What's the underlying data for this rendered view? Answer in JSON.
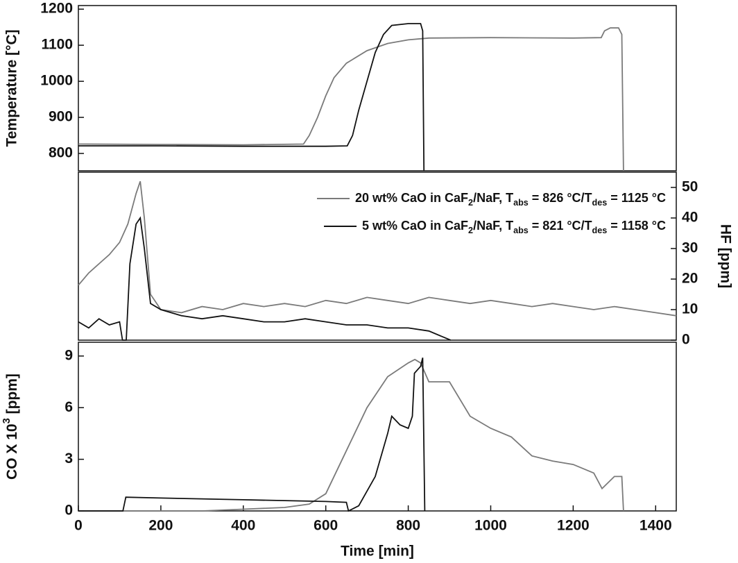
{
  "chart_data": [
    {
      "type": "line",
      "ylabel": "Temperature [°C]",
      "yaxis": "left",
      "xlim": [
        0,
        1450
      ],
      "ylim": [
        752,
        1210
      ],
      "yticks": [
        800,
        900,
        1000,
        1100,
        1200
      ],
      "series": [
        {
          "name": null,
          "color": "#7a7a7a",
          "x": [
            0,
            200,
            400,
            546,
            560,
            580,
            600,
            620,
            650,
            700,
            750,
            800,
            850,
            1000,
            1200,
            1268,
            1276,
            1290,
            1310,
            1318,
            1322
          ],
          "values": [
            826,
            825,
            824,
            826,
            850,
            900,
            960,
            1010,
            1050,
            1085,
            1105,
            1115,
            1120,
            1121,
            1120,
            1121,
            1140,
            1148,
            1148,
            1130,
            752
          ]
        },
        {
          "name": null,
          "color": "#111111",
          "x": [
            0,
            200,
            400,
            600,
            652,
            665,
            680,
            700,
            720,
            740,
            760,
            800,
            830,
            835,
            838
          ],
          "values": [
            821,
            821,
            820,
            820,
            821,
            850,
            920,
            1000,
            1080,
            1130,
            1155,
            1160,
            1160,
            1140,
            752
          ]
        }
      ]
    },
    {
      "type": "line",
      "ylabel": "HF [ppm]",
      "yaxis": "right",
      "legend": "upper right",
      "xlim": [
        0,
        1450
      ],
      "ylim": [
        0,
        55
      ],
      "yticks": [
        0,
        10,
        20,
        30,
        40,
        50
      ],
      "series": [
        {
          "name": [
            "20 wt% CaO in CaF",
            "2",
            "/NaF, T",
            "abs",
            " = 826 °C/T",
            "des",
            " = 1125 °C"
          ],
          "color": "#7a7a7a",
          "x": [
            0,
            25,
            50,
            75,
            100,
            120,
            140,
            150,
            160,
            175,
            200,
            250,
            300,
            350,
            400,
            450,
            500,
            550,
            600,
            650,
            700,
            750,
            800,
            850,
            900,
            950,
            1000,
            1050,
            1100,
            1150,
            1200,
            1250,
            1300,
            1350,
            1400,
            1450
          ],
          "values": [
            18,
            22,
            25,
            28,
            32,
            38,
            48,
            52,
            40,
            15,
            10,
            9,
            11,
            10,
            12,
            11,
            12,
            11,
            13,
            12,
            14,
            13,
            12,
            14,
            13,
            12,
            13,
            12,
            11,
            12,
            11,
            10,
            11,
            10,
            9,
            8
          ]
        },
        {
          "name": [
            "5 wt% CaO in CaF",
            "2",
            "/NaF, T",
            "abs",
            " = 821 °C/T",
            "des",
            " = 1158 °C"
          ],
          "color": "#111111",
          "x": [
            0,
            25,
            50,
            75,
            100,
            107,
            116,
            125,
            140,
            150,
            160,
            175,
            200,
            250,
            300,
            350,
            400,
            450,
            500,
            550,
            600,
            650,
            700,
            750,
            800,
            850,
            903
          ],
          "values": [
            6,
            4,
            7,
            5,
            6,
            0,
            0,
            25,
            38,
            40,
            30,
            12,
            10,
            8,
            7,
            8,
            7,
            6,
            6,
            7,
            6,
            5,
            5,
            4,
            4,
            3,
            0
          ]
        }
      ]
    },
    {
      "type": "line",
      "ylabel": [
        "CO X 10",
        "3",
        " [ppm]"
      ],
      "yaxis": "left",
      "xlabel": "Time [min]",
      "xlim": [
        0,
        1450
      ],
      "ylim": [
        0,
        9.8
      ],
      "yticks": [
        0,
        3,
        6,
        9
      ],
      "xticks": [
        0,
        200,
        400,
        600,
        800,
        1000,
        1200,
        1400
      ],
      "series": [
        {
          "name": null,
          "color": "#7a7a7a",
          "x": [
            0,
            300,
            400,
            500,
            560,
            600,
            650,
            700,
            750,
            800,
            816,
            830,
            850,
            900,
            950,
            1000,
            1050,
            1100,
            1150,
            1200,
            1250,
            1270,
            1300,
            1318,
            1322
          ],
          "values": [
            0,
            0,
            0.1,
            0.2,
            0.4,
            1,
            3.5,
            6,
            7.8,
            8.6,
            8.8,
            8.6,
            7.5,
            7.5,
            5.5,
            4.8,
            4.3,
            3.2,
            2.9,
            2.7,
            2.2,
            1.3,
            2.0,
            2.0,
            0
          ]
        },
        {
          "name": null,
          "color": "#111111",
          "x": [
            0,
            108,
            115,
            200,
            400,
            600,
            650,
            655,
            680,
            720,
            750,
            760,
            780,
            800,
            810,
            815,
            830,
            835,
            840
          ],
          "values": [
            0,
            0,
            0.8,
            0.75,
            0.65,
            0.55,
            0.5,
            0,
            0.3,
            2,
            4.5,
            5.5,
            5,
            4.8,
            5.5,
            8,
            8.4,
            8.9,
            0
          ]
        }
      ]
    }
  ]
}
